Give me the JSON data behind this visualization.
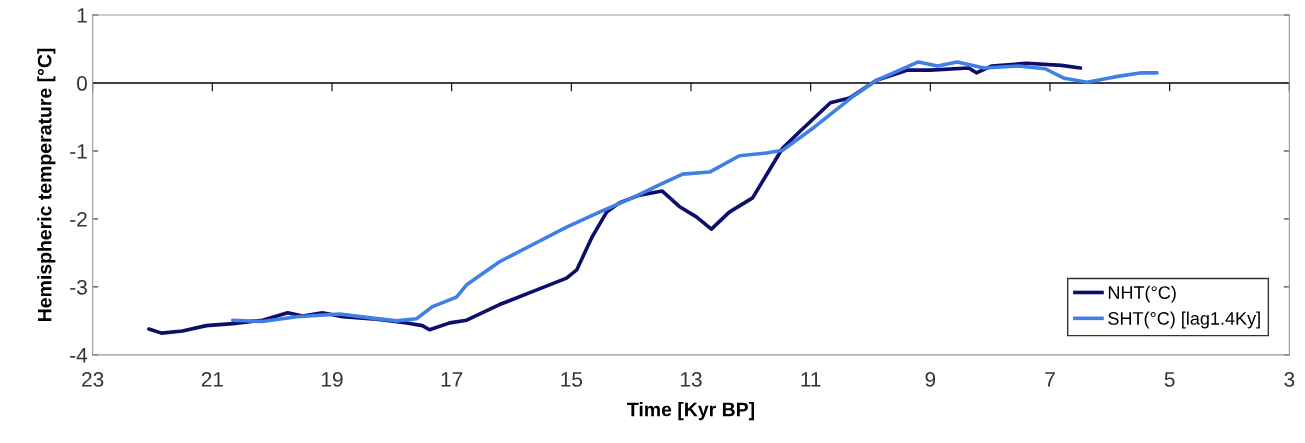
{
  "chart_data": {
    "type": "line",
    "xlabel": "Time [Kyr BP]",
    "ylabel": "Hemispheric temperature [°C]",
    "xlim": [
      23,
      3
    ],
    "xticks": [
      23,
      21,
      19,
      17,
      15,
      13,
      11,
      9,
      7,
      5,
      3
    ],
    "ylim": [
      -4,
      1
    ],
    "yticks": [
      -4,
      -3,
      -2,
      -1,
      0,
      1
    ],
    "grid": false,
    "ref_lines": [
      {
        "axis": "y",
        "value": 0,
        "color": "#000000"
      }
    ],
    "legend": "bottom right",
    "marker": "none",
    "line_style": "solid",
    "series": [
      {
        "name": "NHT(°C)",
        "color": "#0d0d6b",
        "x": [
          22.06,
          21.85,
          21.5,
          21.1,
          20.66,
          20.16,
          19.74,
          19.49,
          19.16,
          18.82,
          18.32,
          17.75,
          17.49,
          17.37,
          17.03,
          16.75,
          16.2,
          15.65,
          15.08,
          14.91,
          14.65,
          14.41,
          14.19,
          13.86,
          13.48,
          13.19,
          12.91,
          12.66,
          12.36,
          11.97,
          11.69,
          11.47,
          11.19,
          10.67,
          10.35,
          9.9,
          9.38,
          9.0,
          8.36,
          8.23,
          7.98,
          7.39,
          6.81,
          6.49
        ],
        "values": [
          -3.62,
          -3.68,
          -3.65,
          -3.57,
          -3.54,
          -3.49,
          -3.38,
          -3.43,
          -3.38,
          -3.44,
          -3.47,
          -3.53,
          -3.57,
          -3.63,
          -3.53,
          -3.49,
          -3.26,
          -3.07,
          -2.87,
          -2.75,
          -2.26,
          -1.9,
          -1.76,
          -1.65,
          -1.59,
          -1.82,
          -1.97,
          -2.15,
          -1.9,
          -1.69,
          -1.28,
          -0.96,
          -0.72,
          -0.29,
          -0.22,
          0.04,
          0.19,
          0.19,
          0.22,
          0.15,
          0.25,
          0.29,
          0.26,
          0.22
        ]
      },
      {
        "name": "SHT(°C) [lag1.4Ky]",
        "color": "#3f7fe6",
        "x": [
          20.66,
          20.16,
          19.59,
          18.87,
          18.32,
          17.92,
          17.59,
          17.32,
          16.92,
          16.75,
          16.2,
          15.65,
          15.08,
          14.53,
          13.98,
          13.53,
          13.14,
          12.69,
          12.19,
          11.74,
          11.47,
          10.94,
          10.28,
          9.9,
          9.2,
          8.88,
          8.55,
          8.1,
          7.53,
          7.08,
          6.76,
          6.38,
          5.92,
          5.47,
          5.21
        ],
        "values": [
          -3.49,
          -3.51,
          -3.44,
          -3.4,
          -3.46,
          -3.5,
          -3.47,
          -3.29,
          -3.15,
          -2.97,
          -2.63,
          -2.38,
          -2.12,
          -1.9,
          -1.69,
          -1.5,
          -1.34,
          -1.31,
          -1.07,
          -1.03,
          -0.99,
          -0.65,
          -0.19,
          0.04,
          0.31,
          0.25,
          0.31,
          0.22,
          0.25,
          0.21,
          0.07,
          0.01,
          0.09,
          0.15,
          0.15
        ]
      }
    ]
  }
}
